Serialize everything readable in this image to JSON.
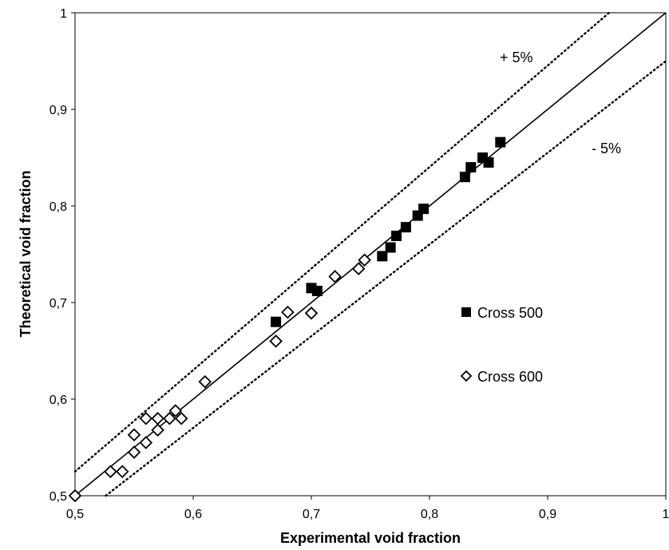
{
  "chart_data": {
    "type": "scatter",
    "title": "",
    "xlabel": "Experimental void fraction",
    "ylabel": "Theoretical void fraction",
    "xlim": [
      0.5,
      1
    ],
    "ylim": [
      0.5,
      1
    ],
    "grid": false,
    "legend_position": "right",
    "x_ticks": [
      0.5,
      0.6,
      0.7,
      0.8,
      0.9,
      1
    ],
    "y_ticks": [
      0.5,
      0.6,
      0.7,
      0.8,
      0.9,
      1
    ],
    "x_tick_labels": [
      "0,5",
      "0,6",
      "0,7",
      "0,8",
      "0,9",
      "1"
    ],
    "y_tick_labels": [
      "0,5",
      "0,6",
      "0,7",
      "0,8",
      "0,9",
      "1"
    ],
    "series": [
      {
        "name": "Cross 500",
        "marker": "filled-square",
        "color": "#000000",
        "points": [
          [
            0.67,
            0.68
          ],
          [
            0.7,
            0.715
          ],
          [
            0.705,
            0.712
          ],
          [
            0.76,
            0.748
          ],
          [
            0.767,
            0.757
          ],
          [
            0.772,
            0.769
          ],
          [
            0.78,
            0.778
          ],
          [
            0.79,
            0.79
          ],
          [
            0.795,
            0.797
          ],
          [
            0.83,
            0.83
          ],
          [
            0.835,
            0.84
          ],
          [
            0.845,
            0.85
          ],
          [
            0.85,
            0.845
          ],
          [
            0.86,
            0.866
          ]
        ]
      },
      {
        "name": "Cross 600",
        "marker": "open-diamond",
        "color": "#000000",
        "points": [
          [
            0.5,
            0.5
          ],
          [
            0.53,
            0.525
          ],
          [
            0.54,
            0.525
          ],
          [
            0.55,
            0.545
          ],
          [
            0.55,
            0.563
          ],
          [
            0.56,
            0.555
          ],
          [
            0.56,
            0.58
          ],
          [
            0.57,
            0.568
          ],
          [
            0.57,
            0.58
          ],
          [
            0.58,
            0.58
          ],
          [
            0.585,
            0.588
          ],
          [
            0.59,
            0.58
          ],
          [
            0.61,
            0.618
          ],
          [
            0.67,
            0.66
          ],
          [
            0.68,
            0.69
          ],
          [
            0.7,
            0.689
          ],
          [
            0.72,
            0.727
          ],
          [
            0.74,
            0.735
          ],
          [
            0.745,
            0.744
          ]
        ]
      }
    ],
    "reference_lines": [
      {
        "role": "parity",
        "style": "solid",
        "x": [
          0.5,
          1
        ],
        "y": [
          0.5,
          1
        ]
      },
      {
        "role": "plus",
        "style": "dotted",
        "x": [
          0.5,
          0.952
        ],
        "y": [
          0.525,
          1
        ]
      },
      {
        "role": "minus",
        "style": "dotted",
        "x": [
          0.526,
          1
        ],
        "y": [
          0.5,
          0.95
        ]
      }
    ],
    "annotations": [
      "+ 5%",
      "- 5%"
    ]
  }
}
